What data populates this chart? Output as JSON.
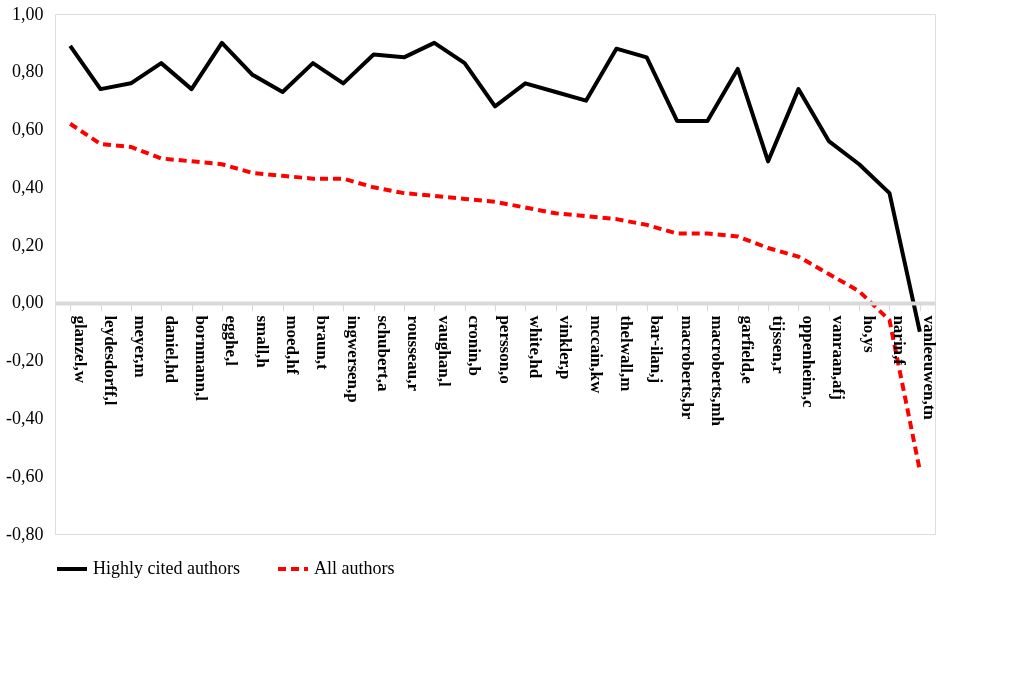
{
  "chart_data": {
    "type": "line",
    "categories": [
      "glanzel,w",
      "leydesdorff,l",
      "meyer,m",
      "daniel,hd",
      "bornmann,l",
      "egghe,l",
      "small,h",
      "moed,hf",
      "braun,t",
      "ingwersen,p",
      "schubert,a",
      "rousseau,r",
      "vaughan,l",
      "cronin,b",
      "persson,o",
      "white,hd",
      "vinkler,p",
      "mccain,kw",
      "thelwall,m",
      "bar-ilan,j",
      "macroberts,br",
      "macroberts,mh",
      "garfield,e",
      "tijssen,r",
      "oppenheim,c",
      "vanraan,afj",
      "ho,ys",
      "narin,f",
      "vanleeuwen,tn"
    ],
    "series": [
      {
        "name": "Highly cited authors",
        "color": "#000000",
        "line_style": "solid",
        "values": [
          0.89,
          0.74,
          0.76,
          0.83,
          0.74,
          0.9,
          0.79,
          0.73,
          0.83,
          0.76,
          0.86,
          0.85,
          0.9,
          0.83,
          0.68,
          0.76,
          0.73,
          0.7,
          0.88,
          0.85,
          0.63,
          0.63,
          0.81,
          0.49,
          0.74,
          0.56,
          0.48,
          0.38,
          -0.1
        ]
      },
      {
        "name": "All authors",
        "color": "#ff0000",
        "line_style": "dashed",
        "values": [
          0.62,
          0.55,
          0.54,
          0.5,
          0.49,
          0.48,
          0.45,
          0.44,
          0.43,
          0.43,
          0.4,
          0.38,
          0.37,
          0.36,
          0.35,
          0.33,
          0.31,
          0.3,
          0.29,
          0.27,
          0.24,
          0.24,
          0.23,
          0.19,
          0.16,
          0.1,
          0.04,
          -0.06,
          -0.58
        ]
      }
    ],
    "ylim": [
      -0.8,
      1.0
    ],
    "yticks": [
      {
        "value": -0.8,
        "label": "-0,80"
      },
      {
        "value": -0.6,
        "label": "-0,60"
      },
      {
        "value": -0.4,
        "label": "-0,40"
      },
      {
        "value": -0.2,
        "label": "-0,20"
      },
      {
        "value": 0,
        "label": "0,00"
      },
      {
        "value": 0.2,
        "label": "0,20"
      },
      {
        "value": 0.4,
        "label": "0,40"
      },
      {
        "value": 0.6,
        "label": "0,60"
      },
      {
        "value": 0.8,
        "label": "0,80"
      },
      {
        "value": 1.0,
        "label": "1,00"
      }
    ],
    "grid": false,
    "legend": "bottom",
    "marker": "none"
  }
}
